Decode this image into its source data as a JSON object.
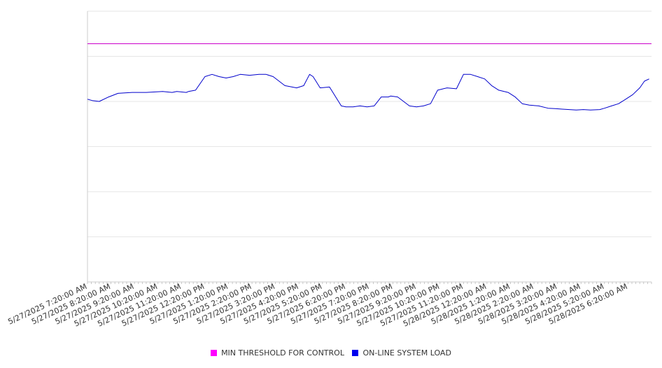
{
  "chart_data": {
    "type": "line",
    "title": "",
    "xlabel": "",
    "ylabel": "",
    "grid": true,
    "legend_position": "bottom",
    "ylim": [
      0,
      6
    ],
    "x_tick_labels": [
      "5/27/2025 7:20:00 AM",
      "5/27/2025 8:20:00 AM",
      "5/27/2025 9:20:00 AM",
      "5/27/2025 10:20:00 AM",
      "5/27/2025 11:20:00 AM",
      "5/27/2025 12:20:00 PM",
      "5/27/2025 1:20:00 PM",
      "5/27/2025 2:20:00 PM",
      "5/27/2025 3:20:00 PM",
      "5/27/2025 4:20:00 PM",
      "5/27/2025 5:20:00 PM",
      "5/27/2025 6:20:00 PM",
      "5/27/2025 7:20:00 PM",
      "5/27/2025 8:20:00 PM",
      "5/27/2025 9:20:00 PM",
      "5/27/2025 10:20:00 PM",
      "5/27/2025 11:20:00 PM",
      "5/28/2025 12:20:00 AM",
      "5/28/2025 1:20:00 AM",
      "5/28/2025 2:20:00 AM",
      "5/28/2025 3:20:00 AM",
      "5/28/2025 4:20:00 AM",
      "5/28/2025 5:20:00 AM",
      "5/28/2025 6:20:00 AM"
    ],
    "x_hours_from_first_tick": [
      0,
      0.2,
      0.5,
      0.9,
      1.3,
      1.9,
      2.5,
      3.2,
      3.6,
      3.8,
      4.2,
      4.3,
      4.6,
      5.0,
      5.3,
      5.6,
      5.9,
      6.2,
      6.5,
      6.9,
      7.3,
      7.6,
      7.9,
      8.4,
      8.9,
      9.2,
      9.45,
      9.6,
      9.9,
      10.3,
      10.8,
      11.0,
      11.3,
      11.6,
      11.9,
      12.2,
      12.5,
      12.8,
      12.9,
      13.2,
      13.7,
      14.0,
      14.3,
      14.6,
      14.9,
      15.3,
      15.7,
      16.0,
      16.3,
      16.6,
      16.9,
      17.2,
      17.5,
      17.9,
      18.2,
      18.5,
      18.8,
      19.2,
      19.6,
      19.9,
      20.2,
      20.5,
      20.8,
      21.1,
      21.4,
      21.8,
      22.0,
      22.3,
      22.6,
      22.9,
      23.2,
      23.5,
      23.7,
      23.9
    ],
    "series": [
      {
        "name": "MIN THRESHOLD FOR CONTROL",
        "color": "#cc00cc",
        "values": [
          5.28,
          5.28
        ]
      },
      {
        "name": "ON-LINE SYSTEM LOAD",
        "color": "#0000cc",
        "values": [
          4.05,
          4.02,
          4.0,
          4.1,
          4.18,
          4.2,
          4.2,
          4.22,
          4.2,
          4.22,
          4.2,
          4.22,
          4.25,
          4.55,
          4.6,
          4.55,
          4.52,
          4.55,
          4.6,
          4.58,
          4.6,
          4.6,
          4.55,
          4.35,
          4.3,
          4.35,
          4.6,
          4.55,
          4.3,
          4.32,
          3.9,
          3.88,
          3.88,
          3.9,
          3.88,
          3.9,
          4.1,
          4.1,
          4.12,
          4.1,
          3.9,
          3.88,
          3.9,
          3.95,
          4.25,
          4.3,
          4.28,
          4.6,
          4.6,
          4.55,
          4.5,
          4.35,
          4.25,
          4.2,
          4.1,
          3.95,
          3.92,
          3.9,
          3.85,
          3.84,
          3.83,
          3.82,
          3.81,
          3.82,
          3.81,
          3.82,
          3.85,
          3.9,
          3.95,
          4.05,
          4.15,
          4.3,
          4.45,
          4.5
        ]
      }
    ]
  }
}
